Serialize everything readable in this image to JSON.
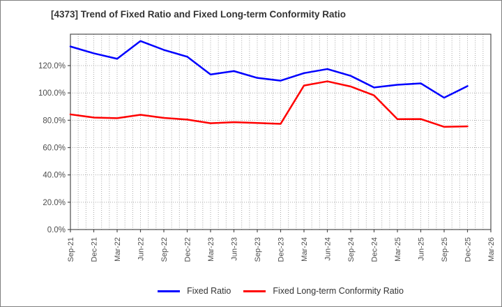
{
  "window": {
    "background": "#ffffff",
    "border_color": "#7f7f7f"
  },
  "chart_data": {
    "type": "line",
    "title": "[4373]  Trend of Fixed Ratio and Fixed Long-term Conformity Ratio",
    "xlabel": "",
    "ylabel": "",
    "categories": [
      "Sep-21",
      "Dec-21",
      "Mar-22",
      "Jun-22",
      "Sep-22",
      "Dec-22",
      "Mar-23",
      "Jun-23",
      "Sep-23",
      "Dec-23",
      "Mar-24",
      "Jun-24",
      "Sep-24",
      "Dec-24",
      "Mar-25",
      "Jun-25",
      "Sep-25",
      "Dec-25",
      "Mar-26"
    ],
    "series": [
      {
        "name": "Fixed Ratio",
        "color": "#0000ff",
        "values": [
          134.0,
          129.0,
          125.0,
          138.0,
          131.5,
          126.5,
          113.5,
          116.0,
          111.0,
          109.0,
          114.5,
          117.5,
          112.5,
          104.0,
          106.0,
          107.0,
          96.5,
          105.0
        ]
      },
      {
        "name": "Fixed Long-term Conformity Ratio",
        "color": "#ff0000",
        "values": [
          84.3,
          82.0,
          81.5,
          84.0,
          81.7,
          80.5,
          77.8,
          78.6,
          78.0,
          77.4,
          105.4,
          108.5,
          104.7,
          98.2,
          80.8,
          80.9,
          75.2,
          75.5
        ]
      }
    ],
    "ylim": [
      0,
      143
    ],
    "y_ticks": [
      {
        "value": 0,
        "label": "0.0%"
      },
      {
        "value": 20,
        "label": "20.0%"
      },
      {
        "value": 40,
        "label": "40.0%"
      },
      {
        "value": 60,
        "label": "60.0%"
      },
      {
        "value": 80,
        "label": "80.0%"
      },
      {
        "value": 100,
        "label": "100.0%"
      },
      {
        "value": 120,
        "label": "120.0%"
      }
    ],
    "grid": true,
    "minor_x_divisions_per_interval": 3,
    "legend_position": "bottom"
  },
  "style_colors": {
    "grid": "#a8a8a8",
    "spine": "#4d4d4d",
    "tick_label": "#4d4d4d",
    "title": "#333333"
  }
}
